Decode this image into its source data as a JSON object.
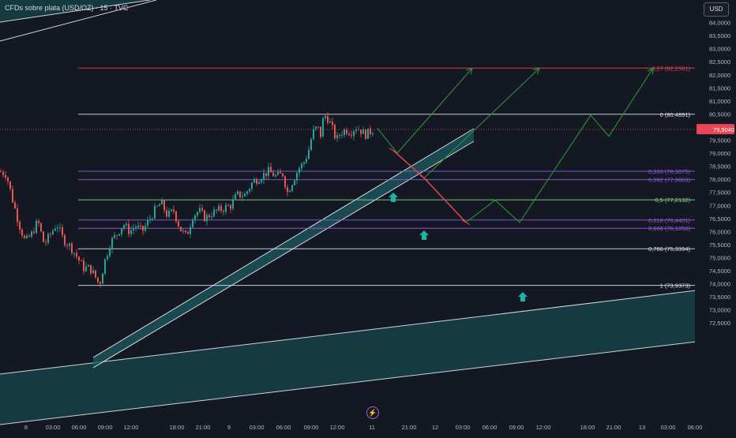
{
  "header": {
    "title": "CFDs sobre plata (USD/OZ) · 15 · TVC",
    "currency": "USD"
  },
  "chart_data": {
    "type": "candlestick",
    "title": "CFDs sobre plata (USD/OZ) · 15 · TVC",
    "current_price": "79,9040",
    "y_ticks": [
      "84,0000",
      "83,5000",
      "83,0000",
      "82,5000",
      "82,0000",
      "81,5000",
      "81,0000",
      "80,5000",
      "80,0000",
      "79,5000",
      "79,0000",
      "78,5000",
      "78,0000",
      "77,5000",
      "77,0000",
      "76,5000",
      "76,0000",
      "75,5000",
      "75,0000",
      "74,5000",
      "74,0000",
      "73,5000",
      "73,0000",
      "72,5000"
    ],
    "y_tick_values": [
      84,
      83.5,
      83,
      82.5,
      82,
      81.5,
      81,
      80.5,
      80,
      79.5,
      79,
      78.5,
      78,
      77.5,
      77,
      76.5,
      76,
      75.5,
      75,
      74.5,
      74,
      73.5,
      73,
      72.5
    ],
    "x_ticks": [
      "8",
      "03:00",
      "06:00",
      "09:00",
      "12:00",
      "18:00",
      "21:00",
      "9",
      "03:00",
      "06:00",
      "09:00",
      "12:00",
      "11",
      "21:00",
      "12",
      "03:00",
      "06:00",
      "09:00",
      "12:00",
      "18:00",
      "21:00",
      "13",
      "03:00",
      "06:00"
    ],
    "fib_levels": [
      {
        "label": "-0,27 (82,2561)",
        "value": 82.2561,
        "color": "#e0454f"
      },
      {
        "label": "0 (80,4891)",
        "value": 80.4891,
        "color": "#dcdee3"
      },
      {
        "label": "0,333 (78,3075)",
        "value": 78.3075,
        "color": "#8a5cd6"
      },
      {
        "label": "0,382 (77,9863)",
        "value": 77.9863,
        "color": "#8a5cd6"
      },
      {
        "label": "0,5 (77,2132)",
        "value": 77.2132,
        "color": "#8fd18a"
      },
      {
        "label": "0,618 (76,4401)",
        "value": 76.4401,
        "color": "#8a5cd6"
      },
      {
        "label": "0,666 (76,1256)",
        "value": 76.1256,
        "color": "#a855d8"
      },
      {
        "label": "0,786 (75,3394)",
        "value": 75.3394,
        "color": "#dcdee3"
      },
      {
        "label": "1 (73,9373)",
        "value": 73.9373,
        "color": "#dcdee3"
      }
    ],
    "candle_path": [
      [
        0,
        78.3
      ],
      [
        8,
        78.2
      ],
      [
        16,
        77.2
      ],
      [
        24,
        76.3
      ],
      [
        32,
        75.6
      ],
      [
        40,
        75.9
      ],
      [
        48,
        76.4
      ],
      [
        56,
        75.5
      ],
      [
        64,
        75.9
      ],
      [
        72,
        76.3
      ],
      [
        80,
        75.7
      ],
      [
        90,
        75.4
      ],
      [
        98,
        75.0
      ],
      [
        106,
        74.6
      ],
      [
        114,
        74.6
      ],
      [
        120,
        74.3
      ],
      [
        126,
        73.95
      ],
      [
        132,
        74.8
      ],
      [
        140,
        75.6
      ],
      [
        148,
        75.9
      ],
      [
        156,
        76.3
      ],
      [
        164,
        76.0
      ],
      [
        172,
        76.2
      ],
      [
        180,
        76.0
      ],
      [
        188,
        76.4
      ],
      [
        196,
        76.8
      ],
      [
        204,
        77.1
      ],
      [
        212,
        76.6
      ],
      [
        220,
        76.8
      ],
      [
        228,
        76.1
      ],
      [
        236,
        75.8
      ],
      [
        244,
        76.6
      ],
      [
        252,
        76.8
      ],
      [
        260,
        76.5
      ],
      [
        268,
        76.7
      ],
      [
        276,
        76.8
      ],
      [
        284,
        76.9
      ],
      [
        292,
        77.0
      ],
      [
        300,
        77.4
      ],
      [
        310,
        77.4
      ],
      [
        320,
        77.9
      ],
      [
        330,
        78.1
      ],
      [
        340,
        78.3
      ],
      [
        350,
        78.1
      ],
      [
        358,
        78.2
      ],
      [
        364,
        77.5
      ],
      [
        370,
        77.9
      ],
      [
        378,
        78.4
      ],
      [
        384,
        78.6
      ],
      [
        390,
        79.0
      ],
      [
        396,
        79.8
      ],
      [
        402,
        80.0
      ],
      [
        406,
        79.7
      ],
      [
        410,
        80.45
      ],
      [
        414,
        80.4
      ],
      [
        420,
        80.0
      ],
      [
        426,
        79.5
      ],
      [
        432,
        79.8
      ],
      [
        438,
        79.9
      ],
      [
        444,
        79.8
      ],
      [
        450,
        80.0
      ],
      [
        456,
        79.9
      ],
      [
        462,
        79.7
      ],
      [
        468,
        79.8
      ],
      [
        472,
        79.9
      ]
    ],
    "projection_red": [
      [
        498,
        79.1
      ],
      [
        537,
        78.05
      ],
      [
        590,
        76.35
      ]
    ],
    "projection_green": [
      [
        [
          478,
          79.95
        ],
        [
          503,
          79.0
        ],
        [
          598,
          82.25
        ]
      ],
      [
        [
          537,
          78.05
        ],
        [
          683,
          82.25
        ]
      ],
      [
        [
          590,
          76.35
        ],
        [
          627,
          77.2
        ],
        [
          658,
          76.35
        ],
        [
          748,
          80.45
        ],
        [
          771,
          79.65
        ],
        [
          827,
          82.25
        ]
      ]
    ]
  }
}
